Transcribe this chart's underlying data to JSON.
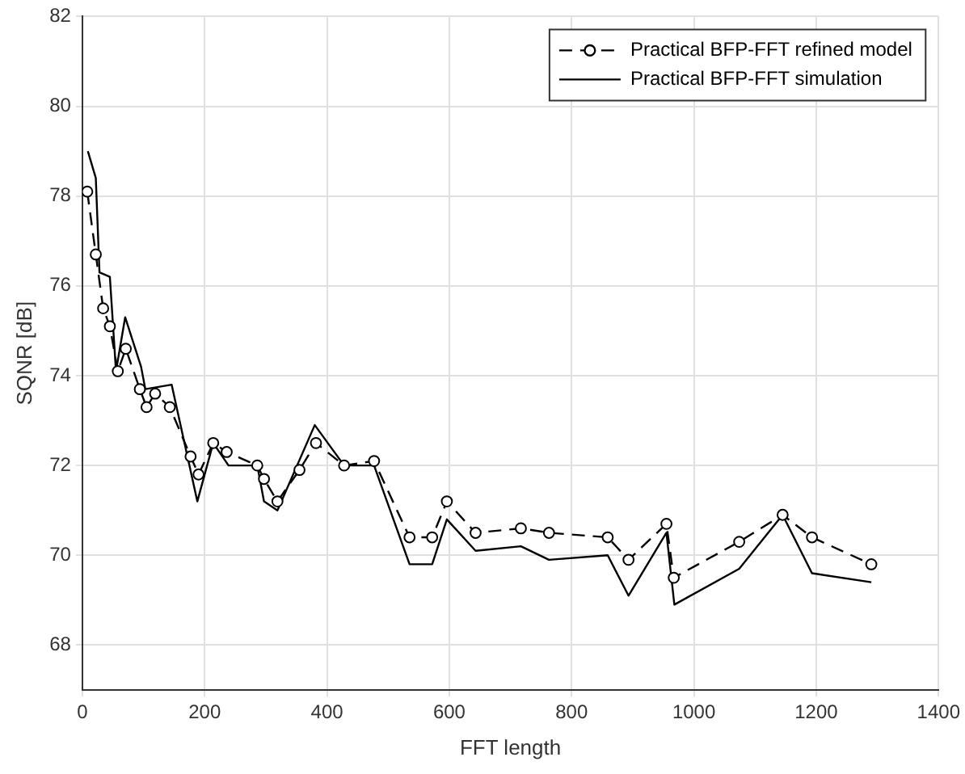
{
  "chart_data": {
    "type": "line",
    "xlabel": "FFT length",
    "ylabel": "SQNR [dB]",
    "xlim": [
      0,
      1400
    ],
    "xticks": [
      0,
      200,
      400,
      600,
      800,
      1000,
      1200,
      1400
    ],
    "ylim": [
      67,
      82
    ],
    "yticks": [
      68,
      70,
      72,
      74,
      76,
      78,
      80,
      82
    ],
    "grid": true,
    "legend": "top right",
    "series": [
      {
        "name": "Practical BFP-FFT refined model",
        "color": "#000000",
        "line_style": "dashed",
        "marker": "circle",
        "x": [
          8,
          22,
          34,
          45,
          58,
          71,
          94,
          105,
          119,
          143,
          177,
          190,
          214,
          236,
          286,
          297,
          319,
          355,
          382,
          428,
          477,
          535,
          572,
          596,
          643,
          717,
          763,
          859,
          893,
          955,
          967,
          1074,
          1145,
          1193,
          1290
        ],
        "values": [
          78.1,
          76.7,
          75.5,
          75.1,
          74.1,
          74.6,
          73.7,
          73.3,
          73.6,
          73.3,
          72.2,
          71.8,
          72.5,
          72.3,
          72.0,
          71.7,
          71.2,
          71.9,
          72.5,
          72.0,
          72.1,
          70.4,
          70.4,
          71.2,
          70.5,
          70.6,
          70.5,
          70.4,
          69.9,
          70.7,
          69.5,
          70.3,
          70.9,
          70.4,
          69.8
        ]
      },
      {
        "name": "Practical BFP-FFT simulation",
        "color": "#000000",
        "line_style": "solid",
        "marker": "none",
        "x": [
          9,
          22,
          28,
          45,
          55,
          70,
          96,
          103,
          146,
          188,
          214,
          239,
          286,
          297,
          319,
          380,
          428,
          477,
          535,
          572,
          596,
          643,
          717,
          763,
          859,
          893,
          955,
          968,
          1074,
          1145,
          1193,
          1290
        ],
        "values": [
          79.0,
          78.4,
          76.3,
          76.2,
          74.1,
          75.3,
          74.2,
          73.7,
          73.8,
          71.2,
          72.5,
          72.0,
          72.0,
          71.2,
          71.0,
          72.9,
          72.0,
          72.0,
          69.8,
          69.8,
          70.8,
          70.1,
          70.2,
          69.9,
          70.0,
          69.1,
          70.5,
          68.9,
          69.7,
          70.9,
          69.6,
          69.4
        ]
      }
    ]
  }
}
